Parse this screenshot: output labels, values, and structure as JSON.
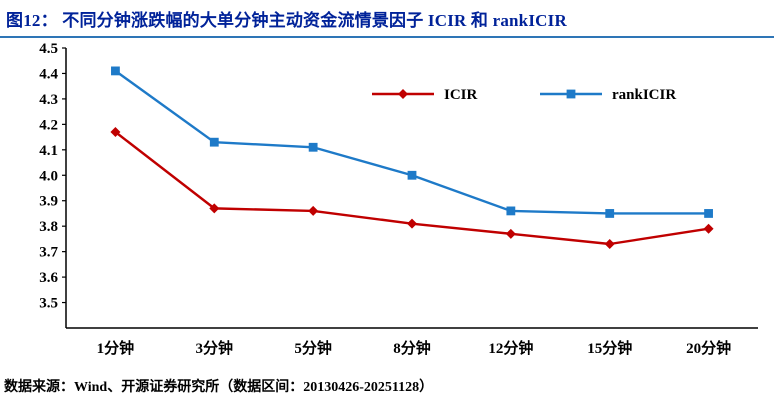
{
  "title": "图12： 不同分钟涨跌幅的大单分钟主动资金流情景因子 ICIR 和 rankICIR",
  "source": "数据来源：Wind、开源证券研究所（数据区间：20130426-20251128）",
  "colors": {
    "title-color": "#002299",
    "rule-color": "#2E75B6",
    "axis-color": "#000000"
  },
  "chart_data": {
    "type": "line",
    "title": "不同分钟涨跌幅的大单分钟主动资金流情景因子 ICIR 和 rankICIR",
    "categories": [
      "1分钟",
      "3分钟",
      "5分钟",
      "8分钟",
      "12分钟",
      "15分钟",
      "20分钟"
    ],
    "series": [
      {
        "name": "ICIR",
        "color": "#C00000",
        "marker": "diamond",
        "values": [
          4.17,
          3.87,
          3.86,
          3.81,
          3.77,
          3.73,
          3.79
        ]
      },
      {
        "name": "rankICIR",
        "color": "#1E7AC8",
        "marker": "square",
        "values": [
          4.41,
          4.13,
          4.11,
          4.0,
          3.86,
          3.85,
          3.85
        ]
      }
    ],
    "xlabel": "",
    "ylabel": "",
    "ylim": [
      3.4,
      4.5
    ],
    "yticks": [
      4.5,
      4.4,
      4.3,
      4.2,
      4.1,
      4.0,
      3.9,
      3.8,
      3.7,
      3.6,
      3.5
    ],
    "grid": false,
    "legend_position": "top-center"
  }
}
